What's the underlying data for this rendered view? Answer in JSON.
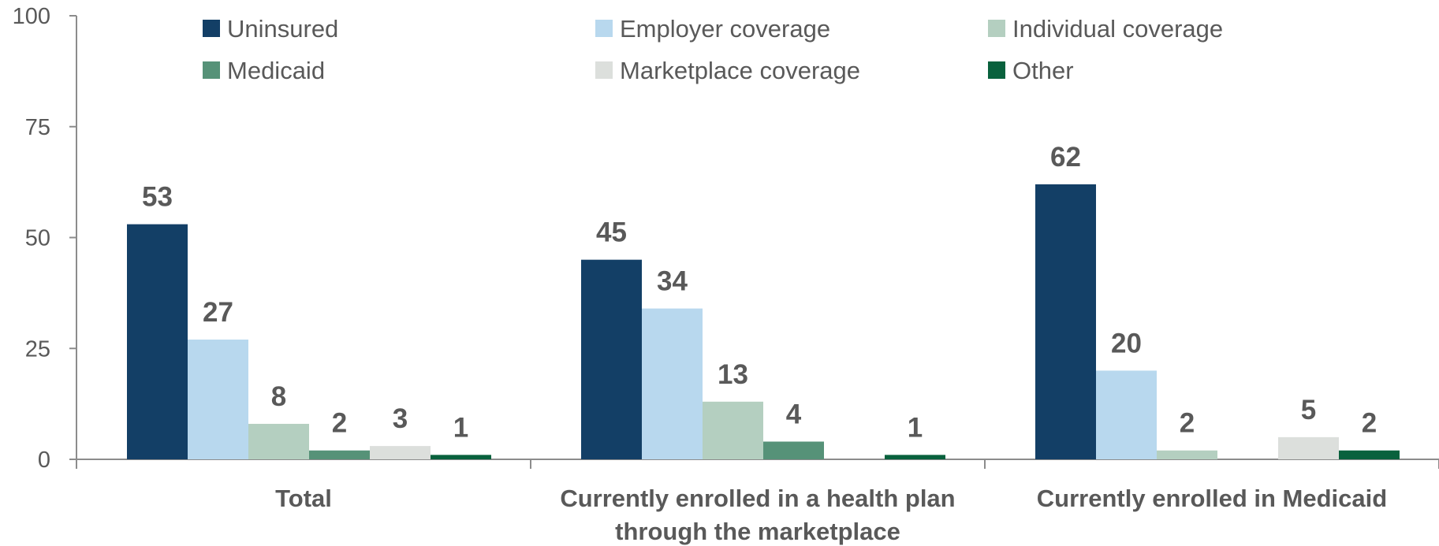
{
  "chart_data": {
    "type": "bar",
    "categories": [
      "Total",
      "Currently enrolled in a health plan through the marketplace",
      "Currently enrolled in Medicaid"
    ],
    "category_label_lines": [
      [
        "Total"
      ],
      [
        "Currently enrolled in a health plan",
        "through the marketplace"
      ],
      [
        "Currently enrolled in Medicaid"
      ]
    ],
    "series": [
      {
        "name": "Uninsured",
        "values": [
          53,
          45,
          62
        ],
        "color": "#133f66"
      },
      {
        "name": "Employer coverage",
        "values": [
          27,
          34,
          20
        ],
        "color": "#b8d8ee"
      },
      {
        "name": "Individual coverage",
        "values": [
          8,
          13,
          2
        ],
        "color": "#b4cfc0"
      },
      {
        "name": "Medicaid",
        "values": [
          2,
          4,
          null
        ],
        "color": "#569278"
      },
      {
        "name": "Marketplace coverage",
        "values": [
          3,
          null,
          5
        ],
        "color": "#dcdfdc"
      },
      {
        "name": "Other",
        "values": [
          1,
          1,
          2
        ],
        "color": "#09613d"
      }
    ],
    "ylim": [
      0,
      100
    ],
    "yticks": [
      0,
      25,
      50,
      75,
      100
    ],
    "title": "",
    "xlabel": "",
    "ylabel": "",
    "grid": false,
    "legend_position": "top"
  }
}
